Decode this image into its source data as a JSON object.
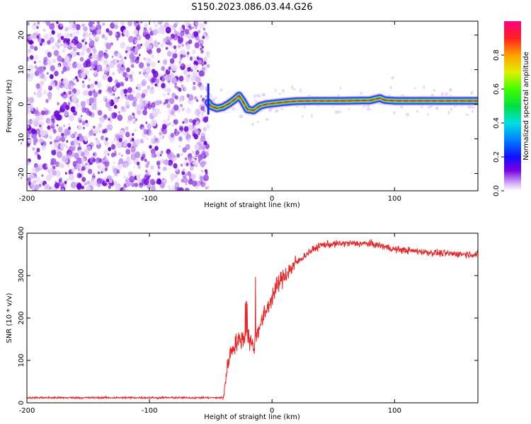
{
  "title": "S150.2023.086.03.44.G26",
  "chart_data": [
    {
      "type": "heatmap",
      "xlabel": "Height of straight line (km)",
      "ylabel": "Frequency (Hz)",
      "xlim": [
        -200,
        168
      ],
      "ylim": [
        -25,
        24
      ],
      "x_ticks": [
        -200,
        -100,
        0,
        100
      ],
      "y_ticks": [
        -20,
        -10,
        0,
        10,
        20
      ],
      "noise_region_x": [
        -200,
        -52
      ],
      "colorbar": {
        "label": "Normalized spectral amplitude",
        "ticks": [
          0.0,
          0.2,
          0.4,
          0.6,
          0.8
        ],
        "range": [
          0,
          1
        ]
      },
      "ridge": {
        "x": [
          -52,
          -50,
          -45,
          -40,
          -35,
          -30,
          -27,
          -24,
          -20,
          -15,
          -10,
          -5,
          0,
          5,
          10,
          20,
          40,
          60,
          80,
          88,
          92,
          100,
          120,
          140,
          168
        ],
        "y": [
          0.5,
          -0.5,
          -1.2,
          -0.8,
          0.2,
          1.5,
          2.5,
          1.0,
          -1.5,
          -1.8,
          -0.5,
          0.0,
          0.2,
          0.4,
          0.6,
          0.9,
          1.0,
          1.0,
          1.1,
          1.8,
          1.2,
          1.0,
          1.0,
          1.0,
          1.0
        ]
      }
    },
    {
      "type": "line",
      "xlabel": "Height of straight line (km)",
      "ylabel": "SNR (10 * v/v)",
      "xlim": [
        -200,
        168
      ],
      "ylim": [
        0,
        400
      ],
      "x_ticks": [
        -200,
        -100,
        0,
        100
      ],
      "y_ticks": [
        0,
        100,
        200,
        300,
        400
      ],
      "series": [
        {
          "color": "#ee2222",
          "x": [
            -200,
            -150,
            -100,
            -60,
            -40,
            -38,
            -35,
            -30,
            -25,
            -20,
            -15,
            -12,
            -10,
            -5,
            0,
            5,
            10,
            20,
            30,
            40,
            60,
            80,
            90,
            100,
            120,
            140,
            168
          ],
          "y": [
            12,
            12,
            12,
            12,
            12,
            50,
            110,
            140,
            150,
            160,
            130,
            170,
            180,
            215,
            250,
            280,
            300,
            330,
            355,
            372,
            376,
            375,
            370,
            362,
            357,
            352,
            350
          ]
        }
      ]
    }
  ]
}
